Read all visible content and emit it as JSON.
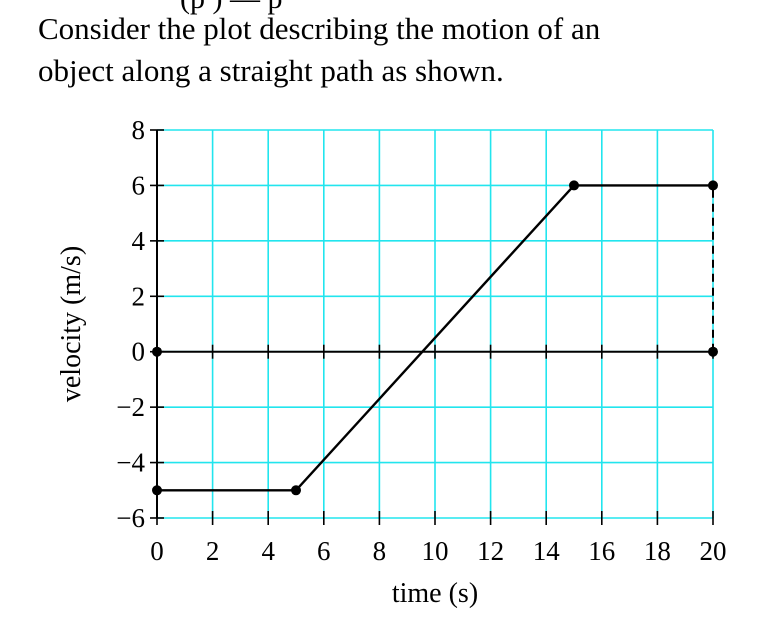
{
  "question": {
    "cut_heading": "(p                  )  — p",
    "line1": "Consider the plot describing the motion of an",
    "line2": "object along a straight path as shown."
  },
  "chart_data": {
    "type": "line",
    "title": "",
    "xlabel": "time (s)",
    "ylabel": "velocity (m/s)",
    "xlim": [
      0,
      20
    ],
    "ylim": [
      -6,
      8
    ],
    "xticks": [
      0,
      2,
      4,
      6,
      8,
      10,
      12,
      14,
      16,
      18,
      20
    ],
    "xtick_labels": [
      "0",
      "2",
      "4",
      "6",
      "8",
      "10",
      "12",
      "14",
      "16",
      "18",
      "20"
    ],
    "yticks": [
      -6,
      -4,
      -2,
      0,
      2,
      4,
      6,
      8
    ],
    "ytick_labels": [
      "−6",
      "−4",
      "−2",
      "0",
      "2",
      "4",
      "6",
      "8"
    ],
    "grid": true,
    "grid_color": "#22e5ee",
    "line_color": "#000000",
    "series": [
      {
        "x": [
          0,
          5,
          15,
          20
        ],
        "y": [
          -5,
          -5,
          6,
          6
        ]
      }
    ],
    "markers": [
      {
        "x": 0,
        "y": -5
      },
      {
        "x": 5,
        "y": -5
      },
      {
        "x": 15,
        "y": 6
      },
      {
        "x": 20,
        "y": 6
      },
      {
        "x": 0,
        "y": 0
      },
      {
        "x": 20,
        "y": 0
      }
    ],
    "dashed_verticals": [
      {
        "x": 0,
        "y1": 0,
        "y2": -5
      },
      {
        "x": 20,
        "y1": 0,
        "y2": 6
      }
    ],
    "zero_line": true
  }
}
